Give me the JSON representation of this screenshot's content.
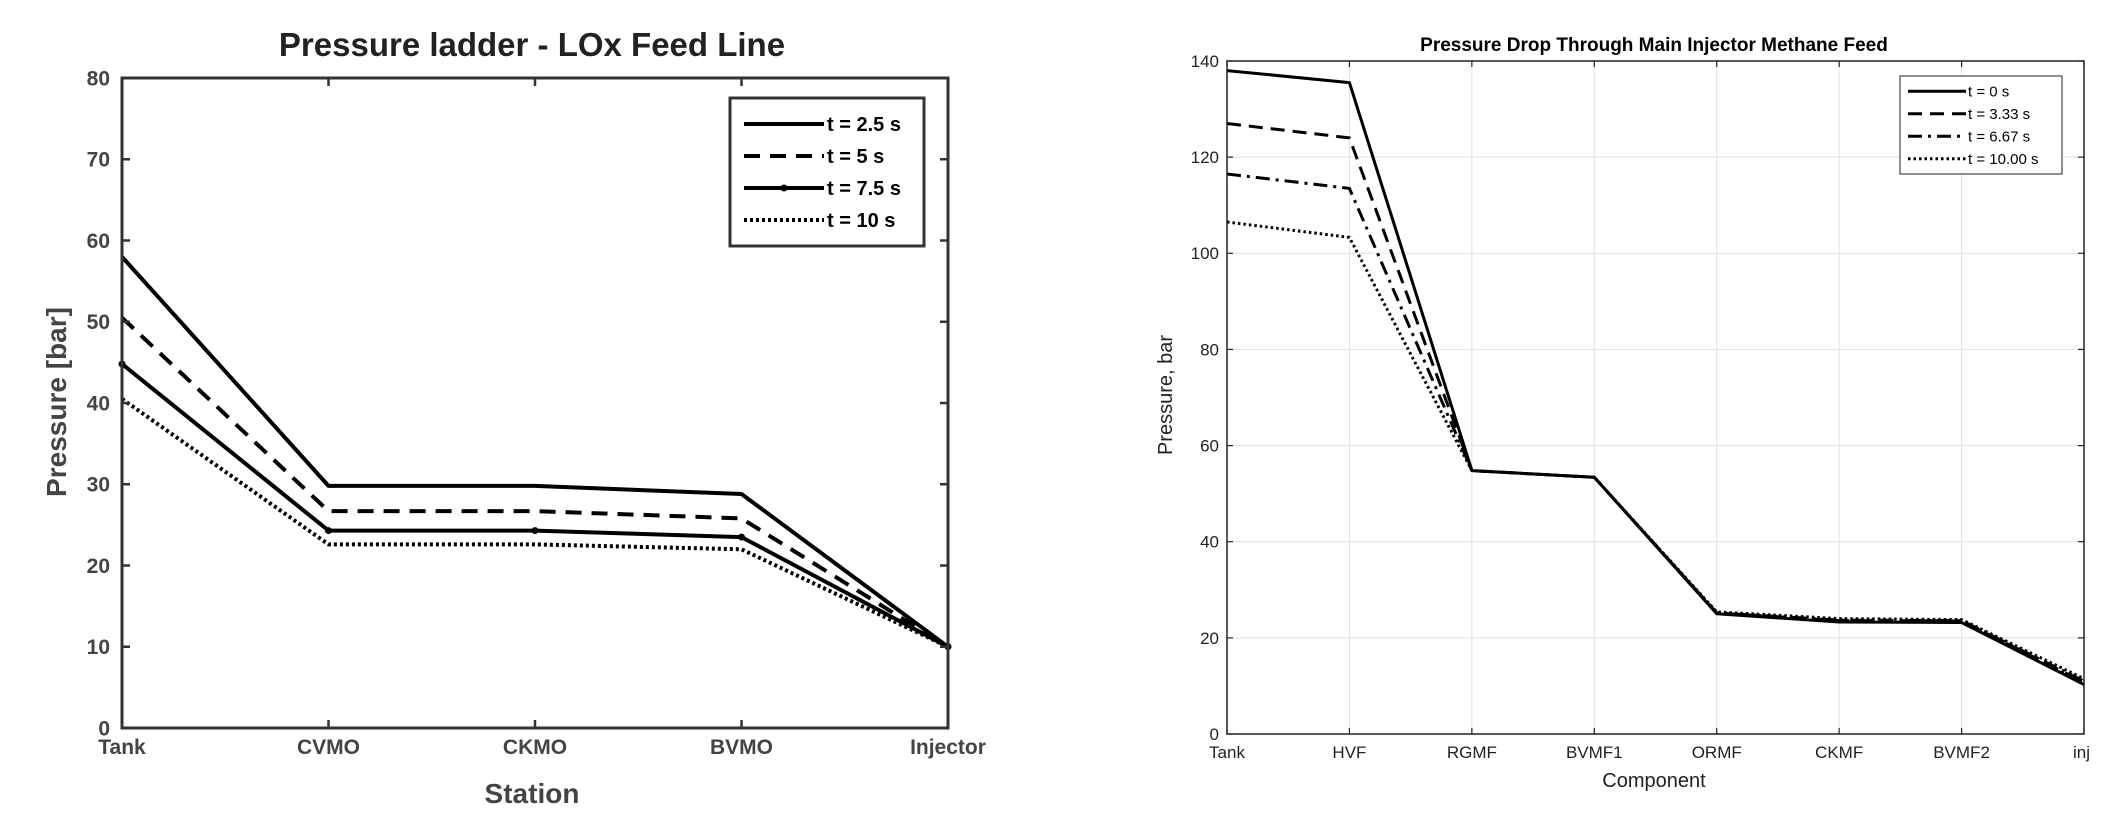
{
  "chart_data": [
    {
      "type": "line",
      "title": "Pressure ladder - LOx Feed Line",
      "xlabel": "Station",
      "ylabel": "Pressure [bar]",
      "categories": [
        "Tank",
        "CVMO",
        "CKMO",
        "BVMO",
        "Injector"
      ],
      "ylim": [
        0,
        80
      ],
      "yticks": [
        0,
        10,
        20,
        30,
        40,
        50,
        60,
        70,
        80
      ],
      "grid": false,
      "legend_position": "top-right",
      "series": [
        {
          "name": "t = 2.5 s",
          "style": "solid",
          "values": [
            58,
            29.8,
            29.8,
            28.8,
            10
          ]
        },
        {
          "name": "t = 5 s",
          "style": "dashed",
          "values": [
            50.5,
            26.7,
            26.7,
            25.8,
            10
          ]
        },
        {
          "name": "t = 7.5 s",
          "style": "solid-dot",
          "values": [
            44.8,
            24.3,
            24.3,
            23.5,
            10
          ]
        },
        {
          "name": "t = 10 s",
          "style": "dotted",
          "values": [
            40.5,
            22.6,
            22.6,
            22.0,
            10
          ]
        }
      ]
    },
    {
      "type": "line",
      "title": "Pressure Drop Through Main Injector Methane Feed",
      "xlabel": "Component",
      "ylabel": "Pressure, bar",
      "categories": [
        "Tank",
        "HVF",
        "RGMF",
        "BVMF1",
        "ORMF",
        "CKMF",
        "BVMF2",
        "inj"
      ],
      "ylim": [
        0,
        140
      ],
      "yticks": [
        0,
        20,
        40,
        60,
        80,
        100,
        120,
        140
      ],
      "grid": true,
      "legend_position": "top-right",
      "series": [
        {
          "name": "t = 0 s",
          "style": "solid",
          "values": [
            138,
            135.5,
            54.8,
            53.4,
            25.0,
            23.3,
            23.2,
            10.3
          ]
        },
        {
          "name": "t = 3.33 s",
          "style": "dashed",
          "values": [
            127,
            124,
            54.8,
            53.4,
            25.2,
            23.6,
            23.5,
            10.8
          ]
        },
        {
          "name": "t = 6.67 s",
          "style": "dashdot",
          "values": [
            116.5,
            113.5,
            54.8,
            53.4,
            25.2,
            23.7,
            23.6,
            11.0
          ]
        },
        {
          "name": "t = 10.00 s",
          "style": "dotted",
          "values": [
            106.5,
            103.3,
            54.8,
            53.4,
            25.4,
            24.0,
            23.8,
            11.5
          ]
        }
      ]
    }
  ]
}
